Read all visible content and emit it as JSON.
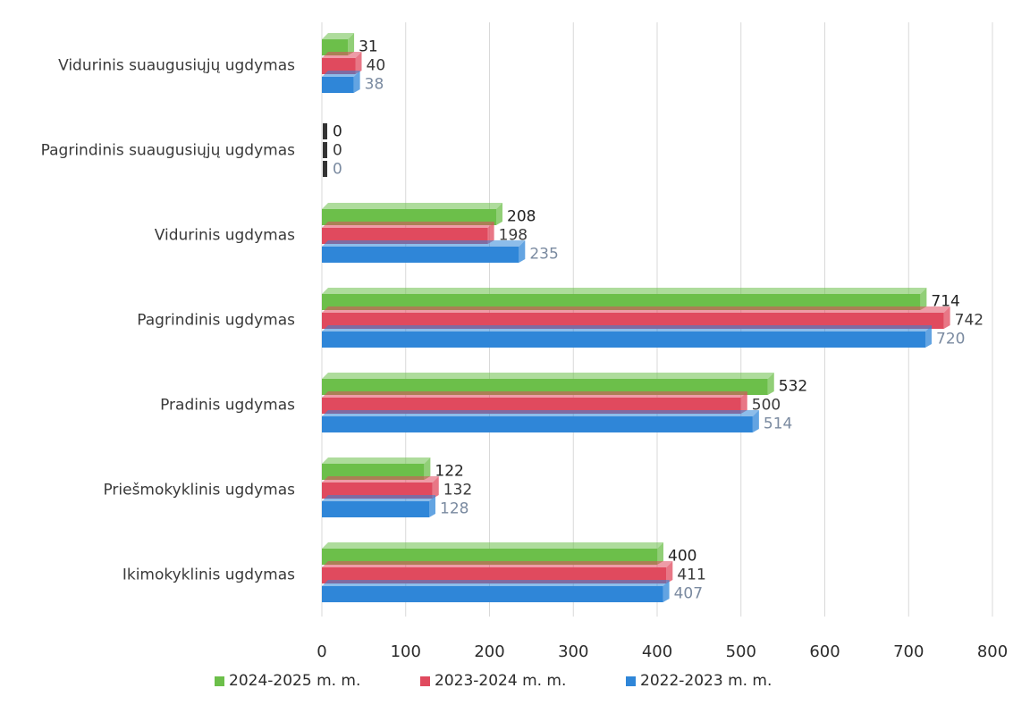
{
  "chart_data": {
    "type": "bar",
    "orientation": "horizontal",
    "categories": [
      "Vidurinis suaugusiųjų ugdymas",
      "Pagrindinis suaugusiųjų ugdymas",
      "Vidurinis ugdymas",
      "Pagrindinis ugdymas",
      "Pradinis ugdymas",
      "Priešmokyklinis ugdymas",
      "Ikimokyklinis ugdymas"
    ],
    "series": [
      {
        "name": "2024-2025 m. m.",
        "color": "#6cbf4a",
        "values": [
          31,
          0,
          208,
          714,
          532,
          122,
          400
        ]
      },
      {
        "name": "2023-2024 m. m.",
        "color": "#e04a5e",
        "values": [
          40,
          0,
          198,
          742,
          500,
          132,
          411
        ]
      },
      {
        "name": "2022-2023 m. m.",
        "color": "#2f86d8",
        "values": [
          38,
          0,
          235,
          720,
          514,
          128,
          407
        ]
      }
    ],
    "xlim": [
      0,
      800
    ],
    "xticks": [
      "0",
      "100",
      "200",
      "300",
      "400",
      "500",
      "600",
      "700",
      "800"
    ],
    "label_colors": [
      "#222222",
      "#3a3a3a",
      "#7a8aa0"
    ],
    "grid": "vertical",
    "legend_position": "bottom"
  }
}
